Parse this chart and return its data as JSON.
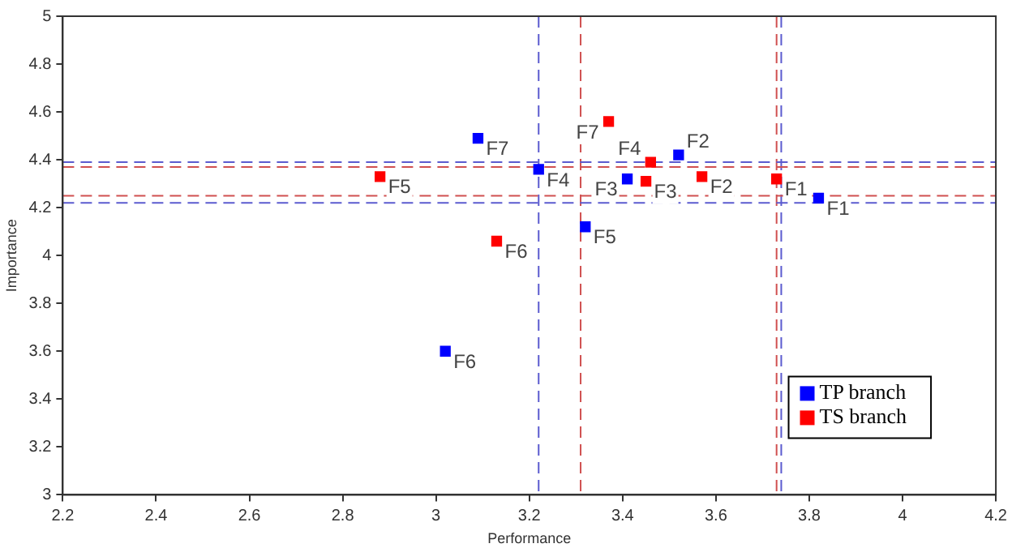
{
  "chart_data": {
    "type": "scatter",
    "xlabel": "Performance",
    "ylabel": "Importance",
    "xlim": [
      2.2,
      4.2
    ],
    "xticks": [
      2.2,
      2.4,
      2.6,
      2.8,
      3,
      3.2,
      3.4,
      3.6,
      3.8,
      4,
      4.2
    ],
    "ylim": [
      3,
      5
    ],
    "yticks": [
      3,
      3.2,
      3.4,
      3.6,
      3.8,
      4,
      4.2,
      4.4,
      4.6,
      4.8,
      5
    ],
    "grid": false,
    "legend": "bottom right",
    "marker": "square",
    "series": [
      {
        "name": "TP branch",
        "color": "#0000ff",
        "x": [
          3.82,
          3.52,
          3.41,
          3.22,
          3.32,
          3.02,
          3.09
        ],
        "values": [
          4.24,
          4.42,
          4.32,
          4.36,
          4.12,
          3.6,
          4.49
        ]
      },
      {
        "name": "TS branch",
        "color": "#ff0000",
        "x": [
          3.73,
          3.57,
          3.45,
          3.46,
          2.88,
          3.13,
          3.37
        ],
        "values": [
          4.32,
          4.33,
          4.31,
          4.39,
          4.33,
          4.06,
          4.56
        ]
      }
    ],
    "ref_lines": [
      {
        "axis": "x",
        "value": 3.22,
        "color": "#5b5bcf",
        "line_style": "dashed"
      },
      {
        "axis": "x",
        "value": 3.31,
        "color": "#d05050",
        "line_style": "dashed"
      },
      {
        "axis": "x",
        "value": 3.73,
        "color": "#d05050",
        "line_style": "dashed"
      },
      {
        "axis": "x",
        "value": 3.74,
        "color": "#5b5bcf",
        "line_style": "dashed"
      },
      {
        "axis": "y",
        "value": 4.39,
        "color": "#5b5bcf",
        "line_style": "dashed"
      },
      {
        "axis": "y",
        "value": 4.37,
        "color": "#d05050",
        "line_style": "dashed"
      },
      {
        "axis": "y",
        "value": 4.25,
        "color": "#d05050",
        "line_style": "dashed"
      },
      {
        "axis": "y",
        "value": 4.22,
        "color": "#5b5bcf",
        "line_style": "dashed"
      }
    ],
    "annotations": [
      {
        "text": "F1",
        "x": 3.82,
        "y": 4.24
      },
      {
        "text": "F2",
        "x": 3.52,
        "y": 4.42
      },
      {
        "text": "F3",
        "x": 3.41,
        "y": 4.32
      },
      {
        "text": "F4",
        "x": 3.22,
        "y": 4.36
      },
      {
        "text": "F5",
        "x": 3.32,
        "y": 4.12
      },
      {
        "text": "F6",
        "x": 3.02,
        "y": 3.6
      },
      {
        "text": "F7",
        "x": 3.09,
        "y": 4.49
      },
      {
        "text": "F1",
        "x": 3.73,
        "y": 4.32
      },
      {
        "text": "F2",
        "x": 3.57,
        "y": 4.33
      },
      {
        "text": "F3",
        "x": 3.45,
        "y": 4.31
      },
      {
        "text": "F4",
        "x": 3.46,
        "y": 4.39
      },
      {
        "text": "F5",
        "x": 2.88,
        "y": 4.33
      },
      {
        "text": "F6",
        "x": 3.13,
        "y": 4.06
      },
      {
        "text": "F7",
        "x": 3.37,
        "y": 4.56
      }
    ]
  }
}
